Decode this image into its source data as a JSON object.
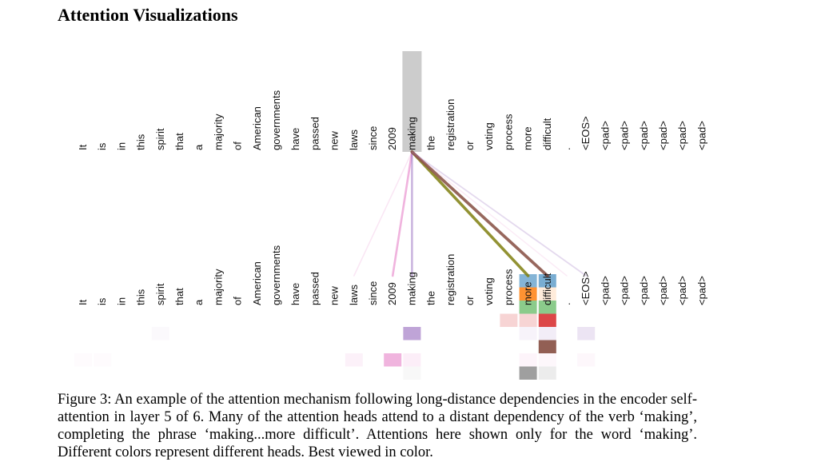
{
  "section_title": "Attention Visualizations",
  "tokens": [
    "It",
    "is",
    "in",
    "this",
    "spirit",
    "that",
    "a",
    "majority",
    "of",
    "American",
    "governments",
    "have",
    "passed",
    "new",
    "laws",
    "since",
    "2009",
    "making",
    "the",
    "registration",
    "or",
    "voting",
    "process",
    "more",
    "difficult",
    ".",
    "<EOS>",
    "<pad>",
    "<pad>",
    "<pad>",
    "<pad>",
    "<pad>",
    "<pad>"
  ],
  "query_token_index": 17,
  "head_colors": [
    "#1f77b4",
    "#ff7f0e",
    "#2ca02c",
    "#d62728",
    "#9467bd",
    "#8c564b",
    "#e377c2",
    "#7f7f7f",
    "#bcbd22",
    "#17becf"
  ],
  "attention_lines": [
    {
      "target": 14,
      "color": "#e377c2",
      "weight": 0.18
    },
    {
      "target": 16,
      "color": "#e377c2",
      "weight": 0.55
    },
    {
      "target": 17,
      "color": "#9467bd",
      "weight": 0.5
    },
    {
      "target": 23,
      "color": "#7f7f0f",
      "weight": 0.85
    },
    {
      "target": 24,
      "color": "#8c564b",
      "weight": 0.9
    },
    {
      "target": 26,
      "color": "#9467bd",
      "weight": 0.25
    },
    {
      "target": 25,
      "color": "#e377c2",
      "weight": 0.15
    }
  ],
  "cells": [
    {
      "token": 23,
      "row": 0,
      "color": "#1f77b4",
      "alpha": 0.55
    },
    {
      "token": 24,
      "row": 0,
      "color": "#1f77b4",
      "alpha": 0.6
    },
    {
      "token": 23,
      "row": 1,
      "color": "#ff7f0e",
      "alpha": 0.85
    },
    {
      "token": 24,
      "row": 1,
      "color": "#ff7f0e",
      "alpha": 0.15
    },
    {
      "token": 23,
      "row": 2,
      "color": "#2ca02c",
      "alpha": 0.55
    },
    {
      "token": 24,
      "row": 2,
      "color": "#2ca02c",
      "alpha": 0.55
    },
    {
      "token": 22,
      "row": 3,
      "color": "#d62728",
      "alpha": 0.2
    },
    {
      "token": 23,
      "row": 3,
      "color": "#d62728",
      "alpha": 0.2
    },
    {
      "token": 24,
      "row": 3,
      "color": "#d62728",
      "alpha": 0.85
    },
    {
      "token": 4,
      "row": 4,
      "color": "#9467bd",
      "alpha": 0.04
    },
    {
      "token": 17,
      "row": 4,
      "color": "#9467bd",
      "alpha": 0.6
    },
    {
      "token": 23,
      "row": 4,
      "color": "#9467bd",
      "alpha": 0.08
    },
    {
      "token": 24,
      "row": 4,
      "color": "#9467bd",
      "alpha": 0.12
    },
    {
      "token": 26,
      "row": 4,
      "color": "#9467bd",
      "alpha": 0.18
    },
    {
      "token": 24,
      "row": 5,
      "color": "#8c564b",
      "alpha": 0.95
    },
    {
      "token": 0,
      "row": 6,
      "color": "#e377c2",
      "alpha": 0.03
    },
    {
      "token": 1,
      "row": 6,
      "color": "#e377c2",
      "alpha": 0.03
    },
    {
      "token": 14,
      "row": 6,
      "color": "#e377c2",
      "alpha": 0.1
    },
    {
      "token": 16,
      "row": 6,
      "color": "#e377c2",
      "alpha": 0.55
    },
    {
      "token": 17,
      "row": 6,
      "color": "#e377c2",
      "alpha": 0.12
    },
    {
      "token": 23,
      "row": 6,
      "color": "#e377c2",
      "alpha": 0.08
    },
    {
      "token": 24,
      "row": 6,
      "color": "#e377c2",
      "alpha": 0.06
    },
    {
      "token": 26,
      "row": 6,
      "color": "#e377c2",
      "alpha": 0.06
    },
    {
      "token": 17,
      "row": 7,
      "color": "#7f7f7f",
      "alpha": 0.05
    },
    {
      "token": 23,
      "row": 7,
      "color": "#7f7f7f",
      "alpha": 0.75
    },
    {
      "token": 24,
      "row": 7,
      "color": "#7f7f7f",
      "alpha": 0.15
    }
  ],
  "caption": "Figure 3: An example of the attention mechanism following long-distance dependencies in the encoder self-attention in layer 5 of 6. Many of the attention heads attend to a distant dependency of the verb ‘making’, completing the phrase ‘making...more difficult’. Attentions here shown only for the word ‘making’. Different colors represent different heads. Best viewed in color."
}
